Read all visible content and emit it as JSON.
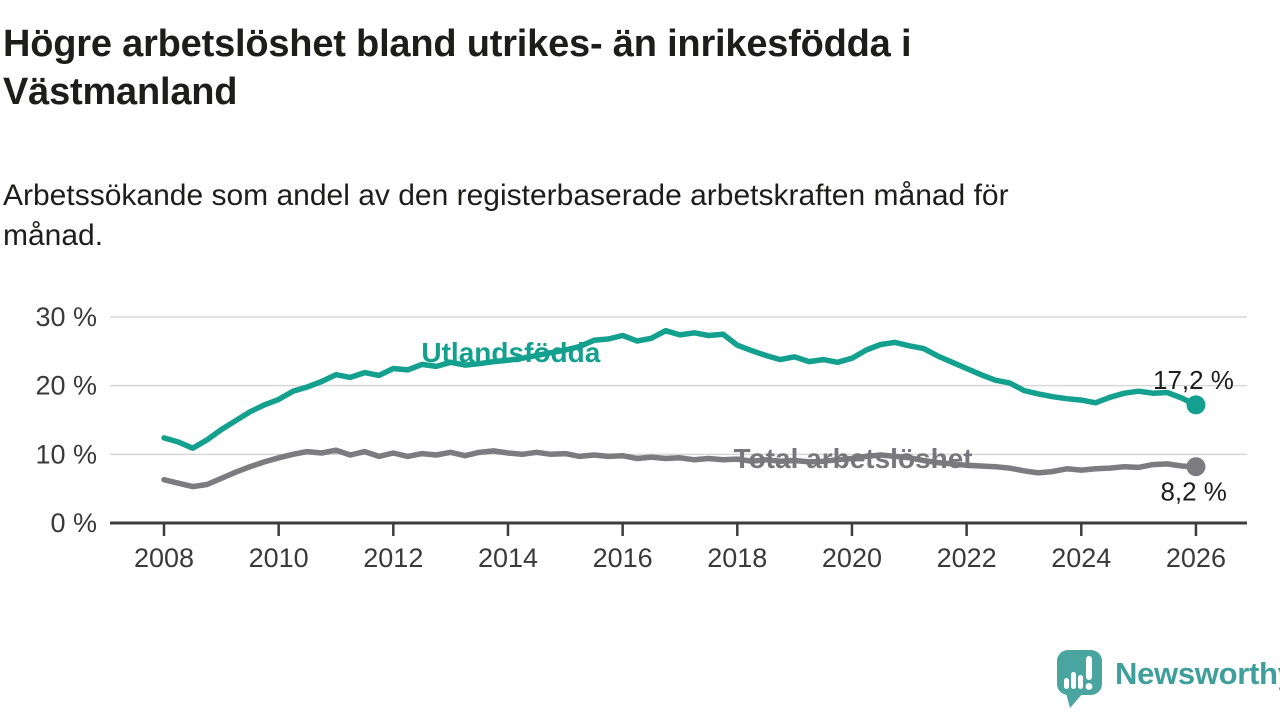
{
  "title": "Högre arbetslöshet bland utrikes- än inrikesfödda i\nVästmanland",
  "subtitle": "Arbetssökande som andel av den registerbaserade arbetskraften månad för\nmånad.",
  "branding": {
    "logo_text": "Newsworthy",
    "logo_icon": "speech-bubble-bar-chart-exclamation"
  },
  "colors": {
    "series_teal": "#13a08e",
    "series_gray": "#7b7b80",
    "gray_label": "#77777c",
    "value_label": "#1d1d1b",
    "grid": "#d8d8d8",
    "axis": "#3d3d3d",
    "axis_text": "#3a3a3a",
    "logo_icon_teal": "#4aa5a1",
    "logo_text_teal": "#3f9f9c"
  },
  "chart_data": {
    "type": "line",
    "title": "Högre arbetslöshet bland utrikes- än inrikesfödda i Västmanland",
    "subtitle": "Arbetssökande som andel av den registerbaserade arbetskraften månad för månad.",
    "xlabel": "",
    "ylabel": "",
    "grid": "horizontal",
    "legend_position": "inline-labels",
    "xlim": [
      2007.05,
      2026.9
    ],
    "ylim": [
      0,
      30
    ],
    "x_ticks": [
      "2008",
      "2010",
      "2012",
      "2014",
      "2016",
      "2018",
      "2020",
      "2022",
      "2024",
      "2026"
    ],
    "y_ticks": [
      {
        "label": "0 %",
        "value": 0
      },
      {
        "label": "10 %",
        "value": 10
      },
      {
        "label": "20 %",
        "value": 20
      },
      {
        "label": "30 %",
        "value": 30
      }
    ],
    "x_start": 2008.0,
    "x_step": 0.25,
    "series": [
      {
        "name": "Utlandsfödda",
        "color": "#13a08e",
        "end_label": "17,2 %",
        "end_value": 17.2,
        "inline_label": {
          "text": "Utlandsfödda",
          "year": 2014.05,
          "value": 23.45
        },
        "values": [
          12.4,
          11.8,
          10.9,
          12.1,
          13.6,
          14.9,
          16.2,
          17.2,
          18.0,
          19.2,
          19.8,
          20.6,
          21.6,
          21.2,
          21.9,
          21.5,
          22.5,
          22.3,
          23.1,
          22.8,
          23.4,
          23.0,
          23.2,
          23.5,
          23.7,
          24.0,
          24.4,
          24.8,
          25.2,
          25.7,
          26.6,
          26.8,
          27.3,
          26.5,
          26.9,
          28.0,
          27.4,
          27.7,
          27.3,
          27.5,
          25.9,
          25.1,
          24.4,
          23.8,
          24.2,
          23.5,
          23.8,
          23.4,
          24.0,
          25.2,
          26.0,
          26.3,
          25.8,
          25.4,
          24.3,
          23.4,
          22.5,
          21.6,
          20.8,
          20.4,
          19.3,
          18.8,
          18.4,
          18.1,
          17.9,
          17.5,
          18.3,
          18.9,
          19.2,
          18.9,
          19.0,
          18.2,
          17.2
        ]
      },
      {
        "name": "Total arbetslöshet",
        "color": "#7b7b80",
        "end_label": "8,2 %",
        "end_value": 8.2,
        "inline_label": {
          "text": "Total arbetslöshet",
          "year": 2020.02,
          "value": 8.0
        },
        "values": [
          6.3,
          5.8,
          5.3,
          5.6,
          6.5,
          7.4,
          8.2,
          8.9,
          9.5,
          10.0,
          10.4,
          10.2,
          10.6,
          9.9,
          10.4,
          9.7,
          10.2,
          9.7,
          10.1,
          9.9,
          10.3,
          9.8,
          10.3,
          10.5,
          10.2,
          10.0,
          10.3,
          10.0,
          10.1,
          9.7,
          9.9,
          9.7,
          9.8,
          9.4,
          9.6,
          9.4,
          9.5,
          9.2,
          9.4,
          9.2,
          9.3,
          9.0,
          9.2,
          9.0,
          9.1,
          8.9,
          9.0,
          9.2,
          9.4,
          9.7,
          9.9,
          9.7,
          9.5,
          9.1,
          8.8,
          8.6,
          8.4,
          8.3,
          8.2,
          8.0,
          7.6,
          7.3,
          7.5,
          7.9,
          7.7,
          7.9,
          8.0,
          8.2,
          8.1,
          8.5,
          8.6,
          8.3,
          8.2
        ]
      }
    ]
  }
}
